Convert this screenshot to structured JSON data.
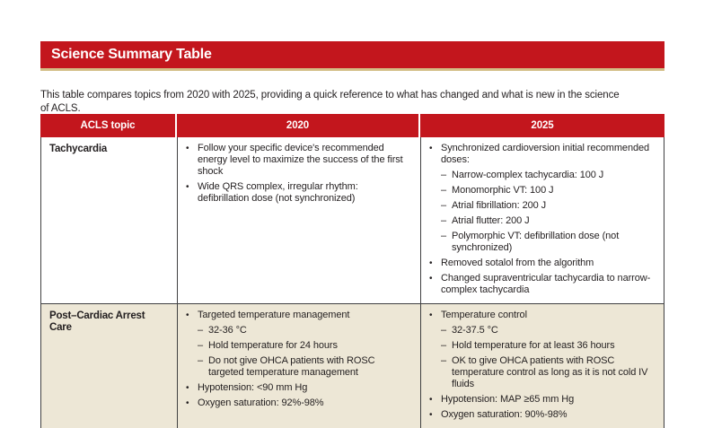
{
  "banner": {
    "title": "Science Summary Table"
  },
  "intro": {
    "text": "This table compares topics from 2020 with 2025, providing a quick reference to what has changed and what is new in the science of ACLS."
  },
  "markers": {
    "bullet": "•",
    "dash": "–"
  },
  "colors": {
    "brand_red": "#c3161d",
    "gold_rule": "#d2be85",
    "row_beige": "#ede7d6",
    "border_dark": "#404041"
  },
  "table": {
    "headers": [
      "ACLS topic",
      "2020",
      "2025"
    ],
    "rows": [
      {
        "topic": "Tachycardia",
        "y2020": [
          {
            "m": "bullet",
            "t": "Follow your specific device's recommended energy level to maximize the success of the first shock"
          },
          {
            "m": "bullet",
            "t": "Wide QRS complex, irregular rhythm: defibrillation dose (not synchronized)"
          }
        ],
        "y2025": [
          {
            "m": "bullet",
            "t": "Synchronized cardioversion initial recommended doses:"
          },
          {
            "m": "dash",
            "t": "Narrow-complex tachycardia: 100 J"
          },
          {
            "m": "dash",
            "t": "Monomorphic VT: 100 J"
          },
          {
            "m": "dash",
            "t": "Atrial fibrillation: 200 J"
          },
          {
            "m": "dash",
            "t": "Atrial flutter: 200 J"
          },
          {
            "m": "dash",
            "t": "Polymorphic VT: defibrillation dose (not synchronized)"
          },
          {
            "m": "bullet",
            "t": "Removed sotalol from the algorithm"
          },
          {
            "m": "bullet",
            "t": "Changed supraventricular tachycardia to narrow-complex tachycardia"
          }
        ]
      },
      {
        "topic": "Post–Cardiac Arrest Care",
        "y2020": [
          {
            "m": "bullet",
            "t": "Targeted temperature management"
          },
          {
            "m": "dash",
            "t": "32-36 °C"
          },
          {
            "m": "dash",
            "t": "Hold temperature for 24 hours"
          },
          {
            "m": "dash",
            "t": "Do not give OHCA patients with ROSC targeted temperature management"
          },
          {
            "m": "bullet",
            "t": "Hypotension: <90 mm Hg"
          },
          {
            "m": "bullet",
            "t": "Oxygen saturation: 92%-98%"
          }
        ],
        "y2025": [
          {
            "m": "bullet",
            "t": "Temperature control"
          },
          {
            "m": "dash",
            "t": "32-37.5 °C"
          },
          {
            "m": "dash",
            "t": "Hold temperature for at least 36 hours"
          },
          {
            "m": "dash",
            "t": "OK to give OHCA patients with ROSC temperature control as long as it is not cold IV fluids"
          },
          {
            "m": "bullet",
            "t": "Hypotension: MAP ≥65 mm Hg"
          },
          {
            "m": "bullet",
            "t": "Oxygen saturation: 90%-98%"
          }
        ]
      }
    ]
  }
}
